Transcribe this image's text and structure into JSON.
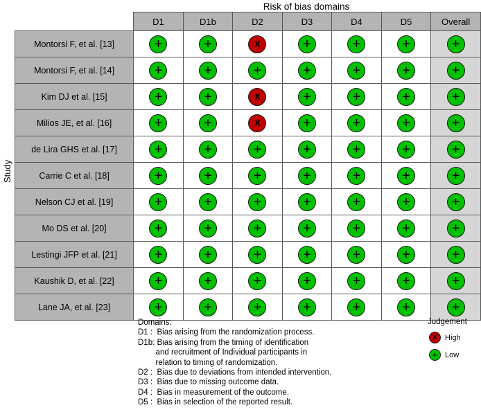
{
  "title": "Risk of bias domains",
  "axis_label": "Study",
  "columns": [
    "D1",
    "D1b",
    "D2",
    "D3",
    "D4",
    "D5",
    "Overall"
  ],
  "studies": [
    "Montorsi F, et al. [13]",
    "Montorsi F, et al. [14]",
    "Kim DJ et al. [15]",
    "Milios JE, et al. [16]",
    "de Lira GHS et al. [17]",
    "Carrie C et al. [18]",
    "Nelson CJ et al. [19]",
    "Mo DS et al. [20]",
    "Lestingi JFP et al. [21]",
    "Kaushik D, et al. [22]",
    "Lane JA, et al. [23]"
  ],
  "judgements": [
    [
      "low",
      "low",
      "high",
      "low",
      "low",
      "low",
      "low"
    ],
    [
      "low",
      "low",
      "low",
      "low",
      "low",
      "low",
      "low"
    ],
    [
      "low",
      "low",
      "high",
      "low",
      "low",
      "low",
      "low"
    ],
    [
      "low",
      "low",
      "high",
      "low",
      "low",
      "low",
      "low"
    ],
    [
      "low",
      "low",
      "low",
      "low",
      "low",
      "low",
      "low"
    ],
    [
      "low",
      "low",
      "low",
      "low",
      "low",
      "low",
      "low"
    ],
    [
      "low",
      "low",
      "low",
      "low",
      "low",
      "low",
      "low"
    ],
    [
      "low",
      "low",
      "low",
      "low",
      "low",
      "low",
      "low"
    ],
    [
      "low",
      "low",
      "low",
      "low",
      "low",
      "low",
      "low"
    ],
    [
      "low",
      "low",
      "low",
      "low",
      "low",
      "low",
      "low"
    ],
    [
      "low",
      "low",
      "low",
      "low",
      "low",
      "low",
      "low"
    ]
  ],
  "symbols": {
    "low": "+",
    "high": "X"
  },
  "colors": {
    "low": "#02C100",
    "high": "#BF0000",
    "header_bg": "#b4b4b4",
    "label_bg": "#b4b4b4",
    "overall_bg": "#d6d6d6",
    "grid": "#595959"
  },
  "legend": {
    "title": "Judgement",
    "items": [
      {
        "key": "high",
        "label": "High"
      },
      {
        "key": "low",
        "label": "Low"
      }
    ]
  },
  "footnote": [
    "Domains:",
    "D1 :  Bias arising from the randomization process.",
    "D1b: Bias arising from the timing of identification",
    "        and recruitment of Individual participants in",
    "        relation to timing of randomization.",
    "D2 :  Bias due to deviations from intended intervention.",
    "D3 :  Bias due to missing outcome data.",
    "D4 :  Bias in measurement of the outcome.",
    "D5 :  Bias in selection of the reported result."
  ],
  "chart_data": {
    "type": "table",
    "title": "Risk of bias domains",
    "xlabel": "Risk of bias domains",
    "ylabel": "Study",
    "columns": [
      "D1",
      "D1b",
      "D2",
      "D3",
      "D4",
      "D5",
      "Overall"
    ],
    "rows": [
      "Montorsi F, et al. [13]",
      "Montorsi F, et al. [14]",
      "Kim DJ et al. [15]",
      "Milios JE, et al. [16]",
      "de Lira GHS et al. [17]",
      "Carrie C et al. [18]",
      "Nelson CJ et al. [19]",
      "Mo DS et al. [20]",
      "Lestingi JFP et al. [21]",
      "Kaushik D, et al. [22]",
      "Lane JA, et al. [23]"
    ],
    "values": [
      [
        "Low",
        "Low",
        "High",
        "Low",
        "Low",
        "Low",
        "Low"
      ],
      [
        "Low",
        "Low",
        "Low",
        "Low",
        "Low",
        "Low",
        "Low"
      ],
      [
        "Low",
        "Low",
        "High",
        "Low",
        "Low",
        "Low",
        "Low"
      ],
      [
        "Low",
        "Low",
        "High",
        "Low",
        "Low",
        "Low",
        "Low"
      ],
      [
        "Low",
        "Low",
        "Low",
        "Low",
        "Low",
        "Low",
        "Low"
      ],
      [
        "Low",
        "Low",
        "Low",
        "Low",
        "Low",
        "Low",
        "Low"
      ],
      [
        "Low",
        "Low",
        "Low",
        "Low",
        "Low",
        "Low",
        "Low"
      ],
      [
        "Low",
        "Low",
        "Low",
        "Low",
        "Low",
        "Low",
        "Low"
      ],
      [
        "Low",
        "Low",
        "Low",
        "Low",
        "Low",
        "Low",
        "Low"
      ],
      [
        "Low",
        "Low",
        "Low",
        "Low",
        "Low",
        "Low",
        "Low"
      ],
      [
        "Low",
        "Low",
        "Low",
        "Low",
        "Low",
        "Low",
        "Low"
      ]
    ],
    "legend": {
      "High": "red circle with X",
      "Low": "green circle with +"
    },
    "legend_position": "bottom-right"
  }
}
